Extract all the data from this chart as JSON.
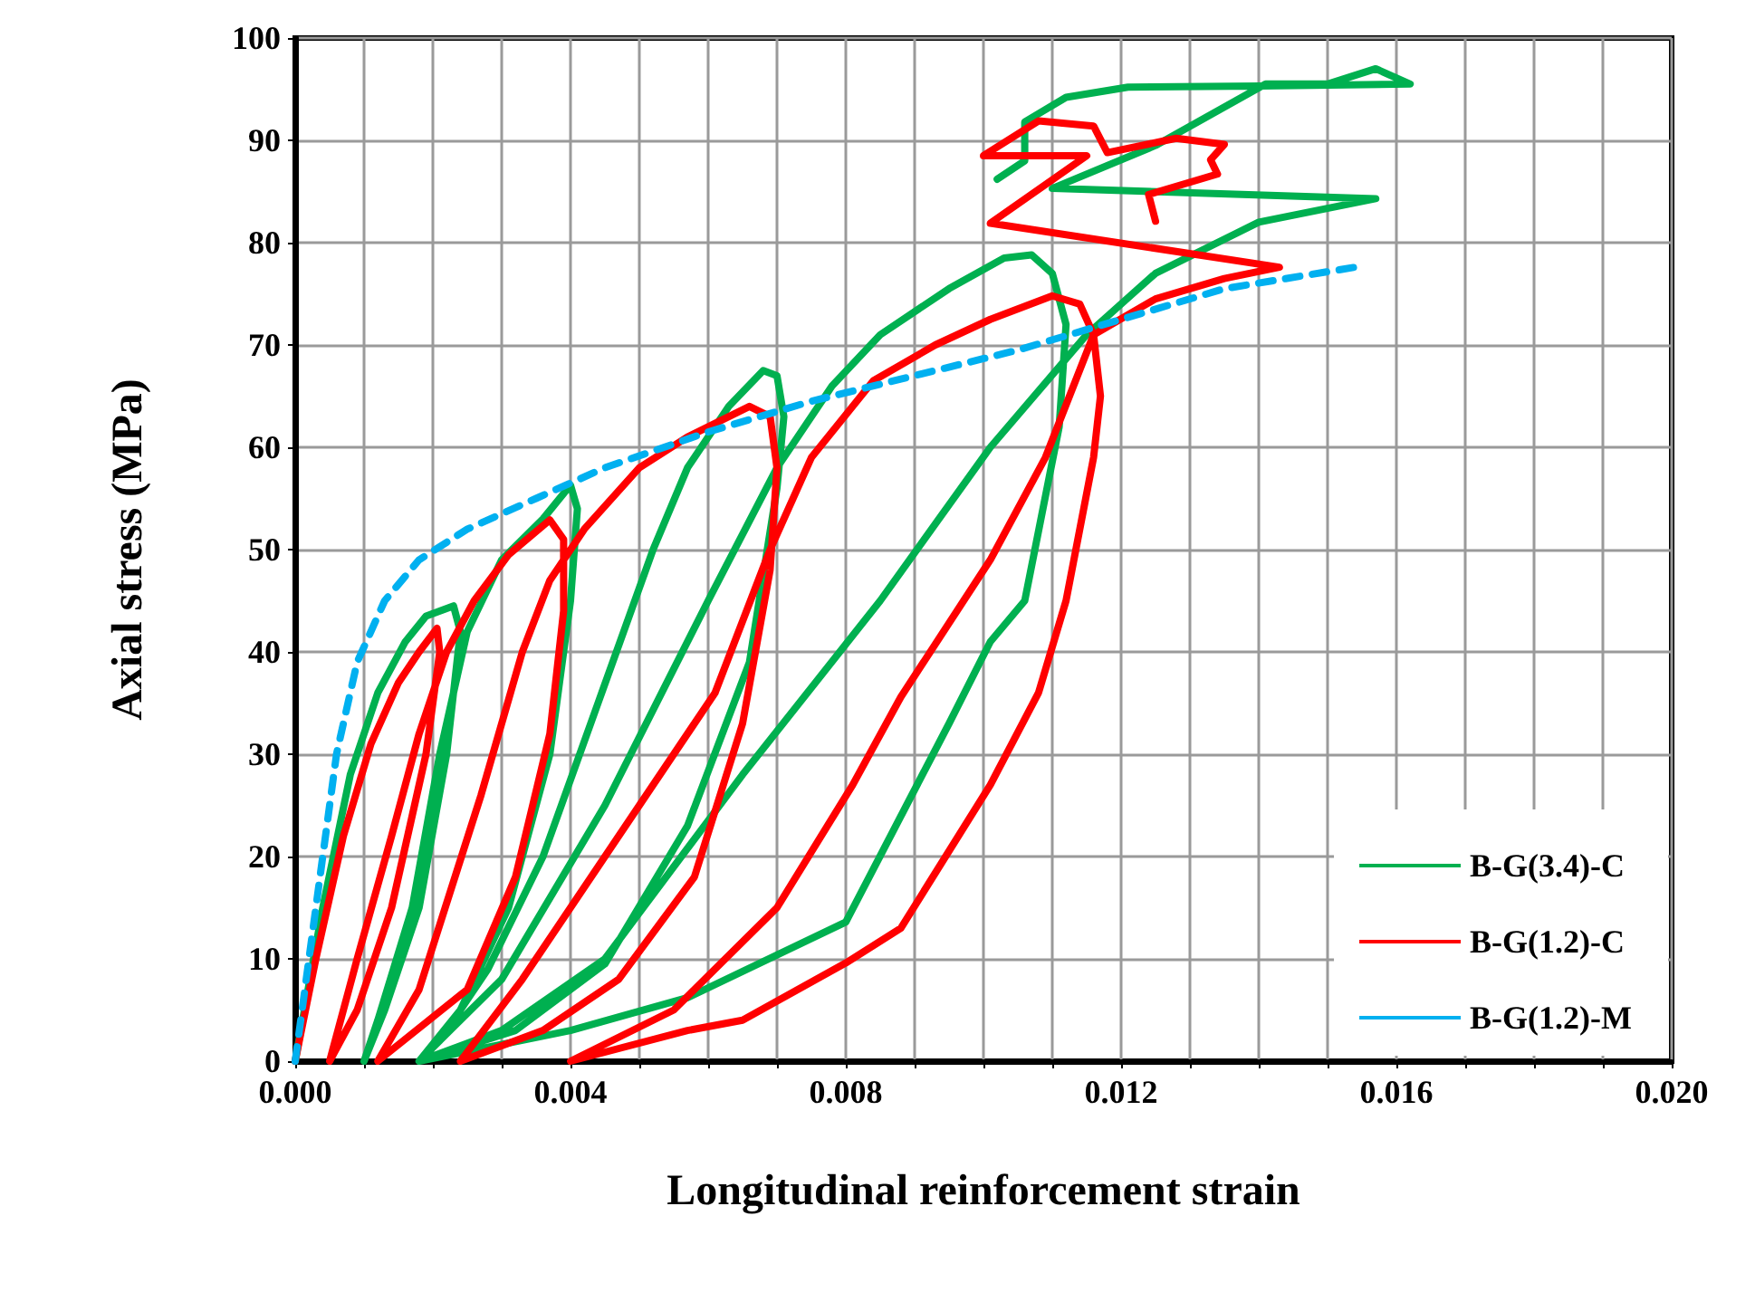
{
  "chart_data": {
    "type": "line",
    "xlabel": "Longitudinal reinforcement strain",
    "ylabel": "Axial stress (MPa)",
    "xlim": [
      0,
      0.02
    ],
    "ylim": [
      0,
      100
    ],
    "xticks": [
      {
        "value": 0,
        "label": "0.000"
      },
      {
        "value": 0.001,
        "label": null
      },
      {
        "value": 0.002,
        "label": null
      },
      {
        "value": 0.003,
        "label": null
      },
      {
        "value": 0.004,
        "label": "0.004"
      },
      {
        "value": 0.005,
        "label": null
      },
      {
        "value": 0.006,
        "label": null
      },
      {
        "value": 0.007,
        "label": null
      },
      {
        "value": 0.008,
        "label": "0.008"
      },
      {
        "value": 0.009,
        "label": null
      },
      {
        "value": 0.01,
        "label": null
      },
      {
        "value": 0.011,
        "label": null
      },
      {
        "value": 0.012,
        "label": "0.012"
      },
      {
        "value": 0.013,
        "label": null
      },
      {
        "value": 0.014,
        "label": null
      },
      {
        "value": 0.015,
        "label": null
      },
      {
        "value": 0.016,
        "label": "0.016"
      },
      {
        "value": 0.017,
        "label": null
      },
      {
        "value": 0.018,
        "label": null
      },
      {
        "value": 0.019,
        "label": null
      },
      {
        "value": 0.02,
        "label": "0.020"
      }
    ],
    "yticks": [
      0,
      10,
      20,
      30,
      40,
      50,
      60,
      70,
      80,
      90,
      100
    ],
    "grid": true,
    "legend": "bottom right",
    "marker": "none",
    "series": [
      {
        "name": "B-G(3.4)-C",
        "color": "#00b050",
        "line_style": "solid",
        "x": [
          0,
          0.0004,
          0.0008,
          0.0012,
          0.0016,
          0.0019,
          0.0023,
          0.0024,
          0.0022,
          0.0018,
          0.0013,
          0.001,
          0.0012,
          0.0017,
          0.0021,
          0.0025,
          0.003,
          0.0036,
          0.004,
          0.0041,
          0.004,
          0.0037,
          0.0031,
          0.0024,
          0.0018,
          0.0021,
          0.0028,
          0.0036,
          0.0044,
          0.0052,
          0.0057,
          0.0063,
          0.0068,
          0.007,
          0.0071,
          0.007,
          0.0066,
          0.0057,
          0.0045,
          0.0032,
          0.0018,
          0.003,
          0.0045,
          0.006,
          0.007,
          0.0078,
          0.0085,
          0.0095,
          0.0103,
          0.0107,
          0.011,
          0.0112,
          0.0111,
          0.0106,
          0.0101,
          0.0095,
          0.008,
          0.0057,
          0.004,
          0.0018,
          0.003,
          0.0045,
          0.0065,
          0.0085,
          0.0101,
          0.0115,
          0.0125,
          0.014,
          0.0157,
          0.011,
          0.0125,
          0.0141,
          0.015,
          0.0157,
          0.0162,
          0.014,
          0.0121,
          0.0112,
          0.0106,
          0.0106,
          0.0102
        ],
        "values": [
          0,
          15,
          28,
          36,
          41,
          43.5,
          44.5,
          42,
          30,
          15,
          5,
          0,
          4,
          15,
          30,
          42,
          49,
          53,
          56.3,
          54,
          45,
          30,
          15,
          5,
          0,
          2,
          9,
          20,
          35,
          50,
          58,
          64,
          67.5,
          67,
          63,
          56,
          39,
          23,
          9.5,
          3,
          0,
          8,
          25,
          45,
          58,
          66,
          71,
          75.5,
          78.5,
          78.8,
          77,
          72,
          62,
          45,
          41,
          33,
          13.6,
          6.2,
          3,
          0,
          3,
          10,
          28,
          45,
          60,
          71,
          77,
          82,
          84.3,
          85.3,
          89.5,
          95.5,
          95.5,
          97,
          95.5,
          95.3,
          95.2,
          94.2,
          91.8,
          88,
          86.2
        ]
      },
      {
        "name": "B-G(1.2)-C",
        "color": "#ff0000",
        "line_style": "solid",
        "x": [
          0,
          0.0003,
          0.0007,
          0.0011,
          0.0015,
          0.0018,
          0.00206,
          0.0021,
          0.0019,
          0.0014,
          0.0009,
          0.0005,
          0.0009,
          0.0014,
          0.0018,
          0.0022,
          0.0026,
          0.0031,
          0.0037,
          0.0039,
          0.0039,
          0.0037,
          0.0032,
          0.0025,
          0.0012,
          0.0018,
          0.0027,
          0.0033,
          0.0037,
          0.0042,
          0.005,
          0.0057,
          0.0066,
          0.0069,
          0.007,
          0.0069,
          0.0065,
          0.0058,
          0.0047,
          0.0036,
          0.0024,
          0.0033,
          0.0045,
          0.0061,
          0.0069,
          0.0075,
          0.0084,
          0.0093,
          0.0101,
          0.011,
          0.0114,
          0.0116,
          0.0117,
          0.0116,
          0.0112,
          0.0108,
          0.0101,
          0.0088,
          0.008,
          0.0065,
          0.0057,
          0.004,
          0.0055,
          0.007,
          0.0081,
          0.0088,
          0.0101,
          0.0109,
          0.0116,
          0.0125,
          0.0135,
          0.0143,
          0.0101,
          0.0115,
          0.01,
          0.0108,
          0.0116,
          0.0118,
          0.0128,
          0.0135,
          0.0133,
          0.0134,
          0.0124,
          0.0125
        ],
        "values": [
          0,
          10,
          22,
          31,
          37,
          40,
          42.3,
          40,
          30,
          15,
          5,
          0,
          10,
          22,
          32,
          40,
          45,
          49.5,
          52.9,
          51,
          44,
          32,
          18,
          7,
          0,
          7,
          26,
          40,
          47,
          52,
          58,
          61,
          64,
          63,
          58,
          48,
          33,
          18,
          8,
          3,
          0,
          8,
          20,
          36,
          50,
          59,
          66.5,
          70,
          72.5,
          74.8,
          74,
          71,
          65,
          59,
          45,
          36,
          27,
          13,
          9.6,
          4,
          3,
          0,
          5,
          15,
          27,
          35.6,
          49,
          59,
          71,
          74.5,
          76.5,
          77.6,
          81.9,
          88.5,
          88.5,
          91.9,
          91.4,
          88.8,
          90.2,
          89.6,
          88.1,
          86.7,
          84.7,
          82.1
        ]
      },
      {
        "name": "B-G(1.2)-M",
        "color": "#00b0f0",
        "line_style": "dashed",
        "x": [
          0,
          0.0002,
          0.0004,
          0.0006,
          0.0009,
          0.0013,
          0.0018,
          0.0025,
          0.0035,
          0.0045,
          0.006,
          0.0075,
          0.009,
          0.0105,
          0.012,
          0.0135,
          0.0154
        ],
        "values": [
          0,
          10,
          20,
          30,
          39,
          45,
          49,
          52,
          55,
          58,
          61.5,
          64.5,
          67,
          69.5,
          72.5,
          75.5,
          77.6
        ]
      }
    ]
  }
}
